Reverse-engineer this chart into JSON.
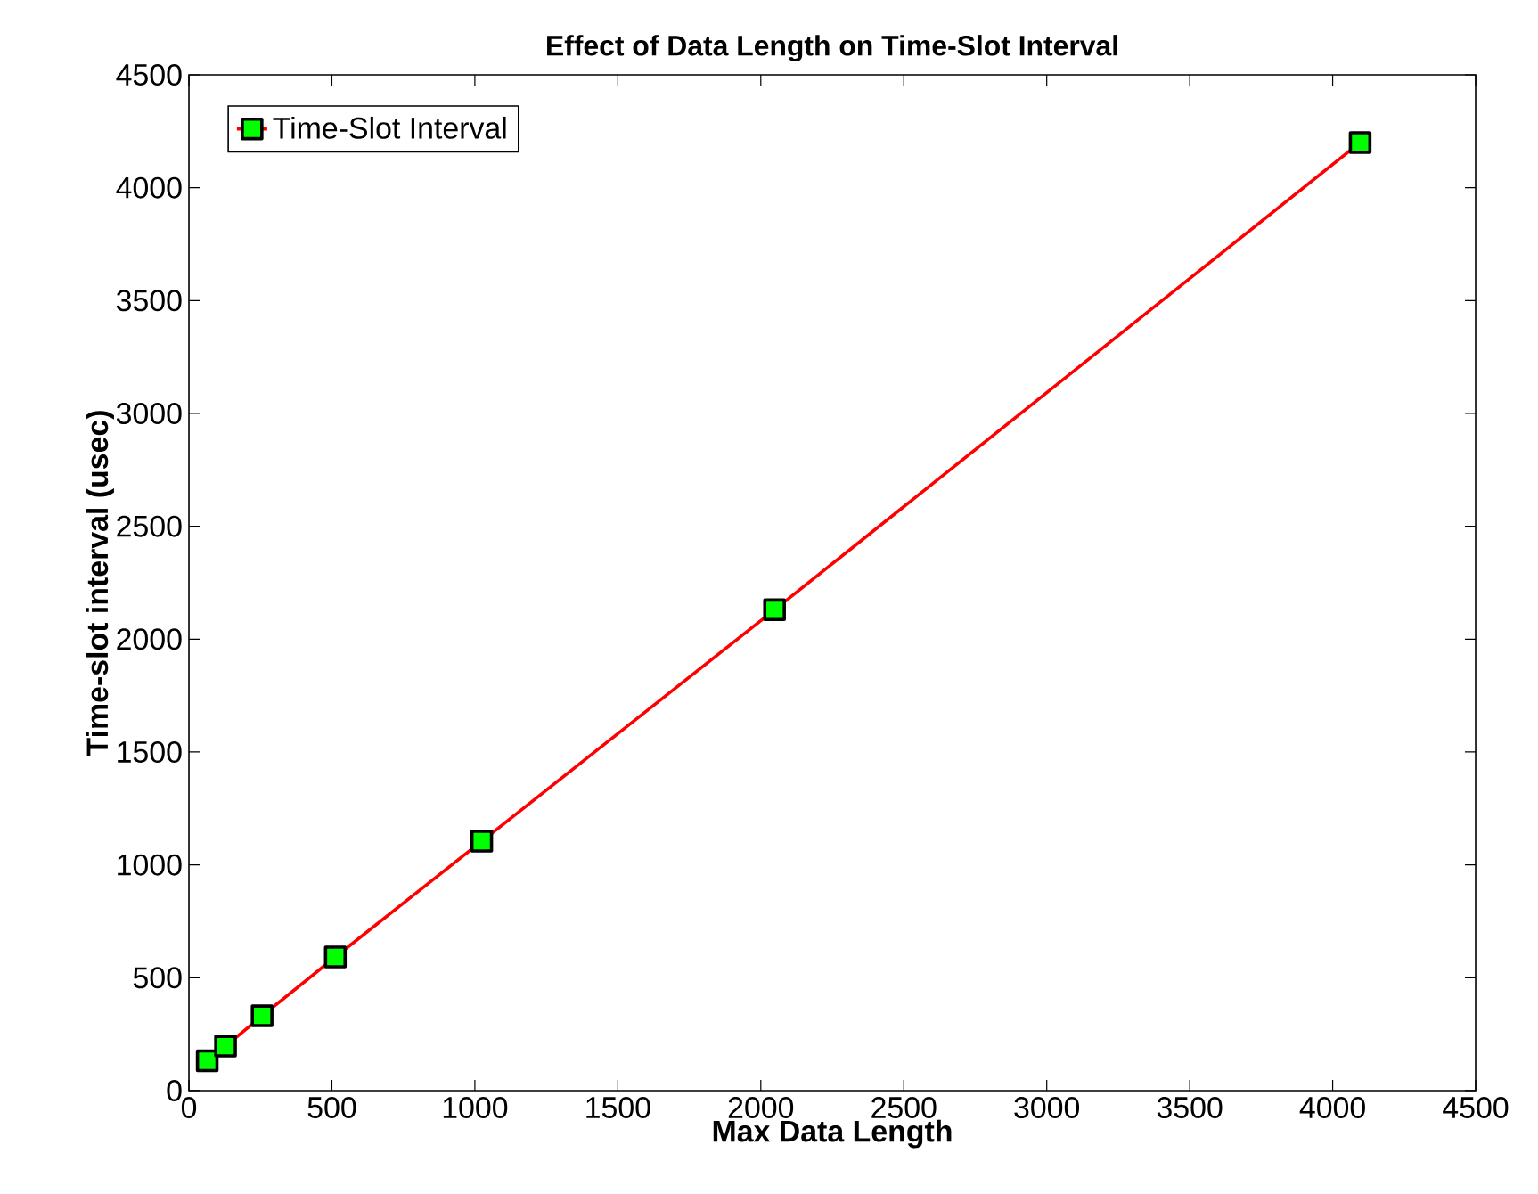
{
  "chart_data": {
    "type": "line",
    "title": "Effect of Data Length on Time-Slot Interval",
    "xlabel": "Max Data Length",
    "ylabel": "Time-slot interval (usec)",
    "series": [
      {
        "name": "Time-Slot Interval",
        "color": "#ff0000",
        "x": [
          64,
          128,
          256,
          512,
          1024,
          2048,
          4096
        ],
        "values": [
          132,
          197,
          331,
          592,
          1105,
          2130,
          4200
        ]
      }
    ],
    "marker": "square",
    "line_style": "solid",
    "legend": "top left",
    "grid": false,
    "xlim": [
      0,
      4500
    ],
    "xticks": [
      0,
      500,
      1000,
      1500,
      2000,
      2500,
      3000,
      3500,
      4000,
      4500
    ],
    "ylim": [
      0,
      4500
    ],
    "yticks": [
      0,
      500,
      1000,
      1500,
      2000,
      2500,
      3000,
      3500,
      4000,
      4500
    ]
  }
}
